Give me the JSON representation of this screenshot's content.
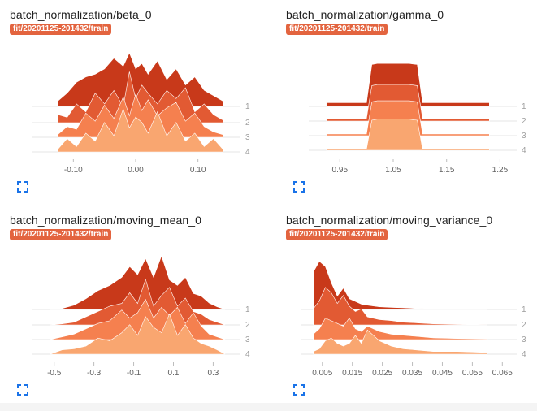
{
  "charts": [
    {
      "title": "batch_normalization/beta_0",
      "run": "fit/20201125-201432/train",
      "chart_data": {
        "type": "area",
        "xlim": [
          -0.15,
          0.15
        ],
        "x_ticks": [
          "-0.10",
          "0.00",
          "0.10"
        ],
        "x_tick_values": [
          -0.1,
          0.0,
          0.1
        ],
        "series_labels": [
          "1",
          "2",
          "3",
          "4"
        ],
        "x": [
          -0.125,
          -0.11,
          -0.095,
          -0.08,
          -0.065,
          -0.05,
          -0.035,
          -0.02,
          -0.01,
          0.0,
          0.01,
          0.02,
          0.035,
          0.05,
          0.065,
          0.08,
          0.095,
          0.11,
          0.125,
          0.14
        ],
        "series": [
          {
            "values": [
              0.1,
              0.25,
              0.45,
              0.55,
              0.6,
              0.7,
              0.9,
              0.75,
              1.0,
              0.7,
              0.8,
              0.6,
              0.85,
              0.5,
              0.7,
              0.4,
              0.55,
              0.3,
              0.2,
              0.1
            ]
          },
          {
            "values": [
              0.15,
              0.1,
              0.35,
              0.2,
              0.55,
              0.35,
              0.6,
              0.3,
              0.95,
              0.45,
              0.7,
              0.55,
              0.35,
              0.6,
              0.45,
              0.65,
              0.2,
              0.35,
              0.15,
              0.05
            ]
          },
          {
            "values": [
              0.05,
              0.2,
              0.15,
              0.45,
              0.3,
              0.6,
              0.35,
              0.75,
              0.4,
              0.8,
              0.5,
              0.7,
              0.4,
              0.55,
              0.65,
              0.3,
              0.45,
              0.2,
              0.1,
              0.05
            ]
          },
          {
            "values": [
              0.05,
              0.25,
              0.1,
              0.35,
              0.2,
              0.55,
              0.3,
              0.8,
              0.45,
              0.65,
              0.55,
              0.35,
              0.75,
              0.3,
              0.55,
              0.2,
              0.35,
              0.1,
              0.25,
              0.05
            ]
          }
        ]
      }
    },
    {
      "title": "batch_normalization/gamma_0",
      "run": "fit/20201125-201432/train",
      "chart_data": {
        "type": "area",
        "xlim": [
          0.91,
          1.26
        ],
        "x_ticks": [
          "0.95",
          "1.05",
          "1.15",
          "1.25"
        ],
        "x_tick_values": [
          0.95,
          1.05,
          1.15,
          1.25
        ],
        "series_labels": [
          "1",
          "2",
          "3",
          "4"
        ],
        "x": [
          0.925,
          0.99,
          1.0,
          1.01,
          1.02,
          1.05,
          1.08,
          1.095,
          1.105,
          1.12,
          1.23
        ],
        "series": [
          {
            "values": [
              0.07,
              0.07,
              0.07,
              0.78,
              0.8,
              0.8,
              0.8,
              0.78,
              0.07,
              0.07,
              0.07
            ]
          },
          {
            "values": [
              0.05,
              0.05,
              0.05,
              0.66,
              0.68,
              0.68,
              0.68,
              0.66,
              0.05,
              0.05,
              0.05
            ]
          },
          {
            "values": [
              0.03,
              0.03,
              0.03,
              0.63,
              0.65,
              0.65,
              0.65,
              0.63,
              0.03,
              0.03,
              0.03
            ]
          },
          {
            "values": [
              0.02,
              0.02,
              0.02,
              0.56,
              0.58,
              0.58,
              0.58,
              0.56,
              0.02,
              0.02,
              0.02
            ]
          }
        ]
      }
    },
    {
      "title": "batch_normalization/moving_mean_0",
      "run": "fit/20201125-201432/train",
      "chart_data": {
        "type": "area",
        "xlim": [
          -0.56,
          0.38
        ],
        "x_ticks": [
          "-0.5",
          "-0.3",
          "-0.1",
          "0.1",
          "0.3"
        ],
        "x_tick_values": [
          -0.5,
          -0.3,
          -0.1,
          0.1,
          0.3
        ],
        "series_labels": [
          "1",
          "2",
          "3",
          "4"
        ],
        "x": [
          -0.52,
          -0.46,
          -0.4,
          -0.34,
          -0.28,
          -0.22,
          -0.16,
          -0.12,
          -0.08,
          -0.04,
          0.0,
          0.04,
          0.08,
          0.12,
          0.16,
          0.2,
          0.24,
          0.28,
          0.32,
          0.36
        ],
        "series": [
          {
            "values": [
              0.0,
              0.02,
              0.08,
              0.2,
              0.35,
              0.45,
              0.6,
              0.8,
              0.65,
              0.95,
              0.6,
              1.0,
              0.55,
              0.45,
              0.6,
              0.3,
              0.25,
              0.12,
              0.05,
              0.0
            ]
          },
          {
            "values": [
              0.0,
              0.02,
              0.05,
              0.15,
              0.25,
              0.35,
              0.4,
              0.6,
              0.4,
              0.85,
              0.35,
              0.55,
              0.7,
              0.35,
              0.5,
              0.25,
              0.2,
              0.1,
              0.05,
              0.0
            ]
          },
          {
            "values": [
              0.0,
              0.05,
              0.1,
              0.2,
              0.3,
              0.35,
              0.55,
              0.4,
              0.5,
              0.75,
              0.4,
              0.6,
              0.45,
              0.6,
              0.3,
              0.5,
              0.25,
              0.1,
              0.05,
              0.0
            ]
          },
          {
            "values": [
              0.0,
              0.08,
              0.1,
              0.15,
              0.3,
              0.25,
              0.4,
              0.55,
              0.35,
              0.7,
              0.5,
              0.4,
              0.75,
              0.35,
              0.55,
              0.3,
              0.2,
              0.15,
              0.08,
              0.0
            ]
          }
        ]
      }
    },
    {
      "title": "batch_normalization/moving_variance_0",
      "run": "fit/20201125-201432/train",
      "chart_data": {
        "type": "area",
        "xlim": [
          0.001,
          0.066
        ],
        "x_ticks": [
          "0.005",
          "0.015",
          "0.025",
          "0.035",
          "0.045",
          "0.055",
          "0.065"
        ],
        "x_tick_values": [
          0.005,
          0.015,
          0.025,
          0.035,
          0.045,
          0.055,
          0.065
        ],
        "series_labels": [
          "1",
          "2",
          "3",
          "4"
        ],
        "x": [
          0.002,
          0.004,
          0.006,
          0.008,
          0.01,
          0.012,
          0.014,
          0.016,
          0.018,
          0.02,
          0.024,
          0.028,
          0.032,
          0.036,
          0.042,
          0.05,
          0.06
        ],
        "series": [
          {
            "values": [
              0.7,
              0.9,
              0.8,
              0.5,
              0.25,
              0.4,
              0.2,
              0.15,
              0.1,
              0.08,
              0.05,
              0.04,
              0.03,
              0.02,
              0.01,
              0.01,
              0.0
            ]
          },
          {
            "values": [
              0.3,
              0.45,
              0.7,
              0.6,
              0.4,
              0.55,
              0.35,
              0.25,
              0.3,
              0.15,
              0.1,
              0.08,
              0.05,
              0.04,
              0.02,
              0.01,
              0.0
            ]
          },
          {
            "values": [
              0.1,
              0.2,
              0.4,
              0.35,
              0.3,
              0.25,
              0.4,
              0.2,
              0.15,
              0.25,
              0.15,
              0.1,
              0.08,
              0.06,
              0.03,
              0.02,
              0.01
            ]
          },
          {
            "values": [
              0.05,
              0.1,
              0.25,
              0.3,
              0.2,
              0.15,
              0.2,
              0.35,
              0.2,
              0.45,
              0.25,
              0.15,
              0.1,
              0.08,
              0.05,
              0.05,
              0.03
            ]
          }
        ]
      }
    }
  ],
  "colors": {
    "series": [
      "#c8391a",
      "#e25a33",
      "#f5804f",
      "#f9a670"
    ],
    "run_badge": "#e3643f",
    "expand_icon": "#1a73e8"
  },
  "expand_icon": "fullscreen-icon"
}
